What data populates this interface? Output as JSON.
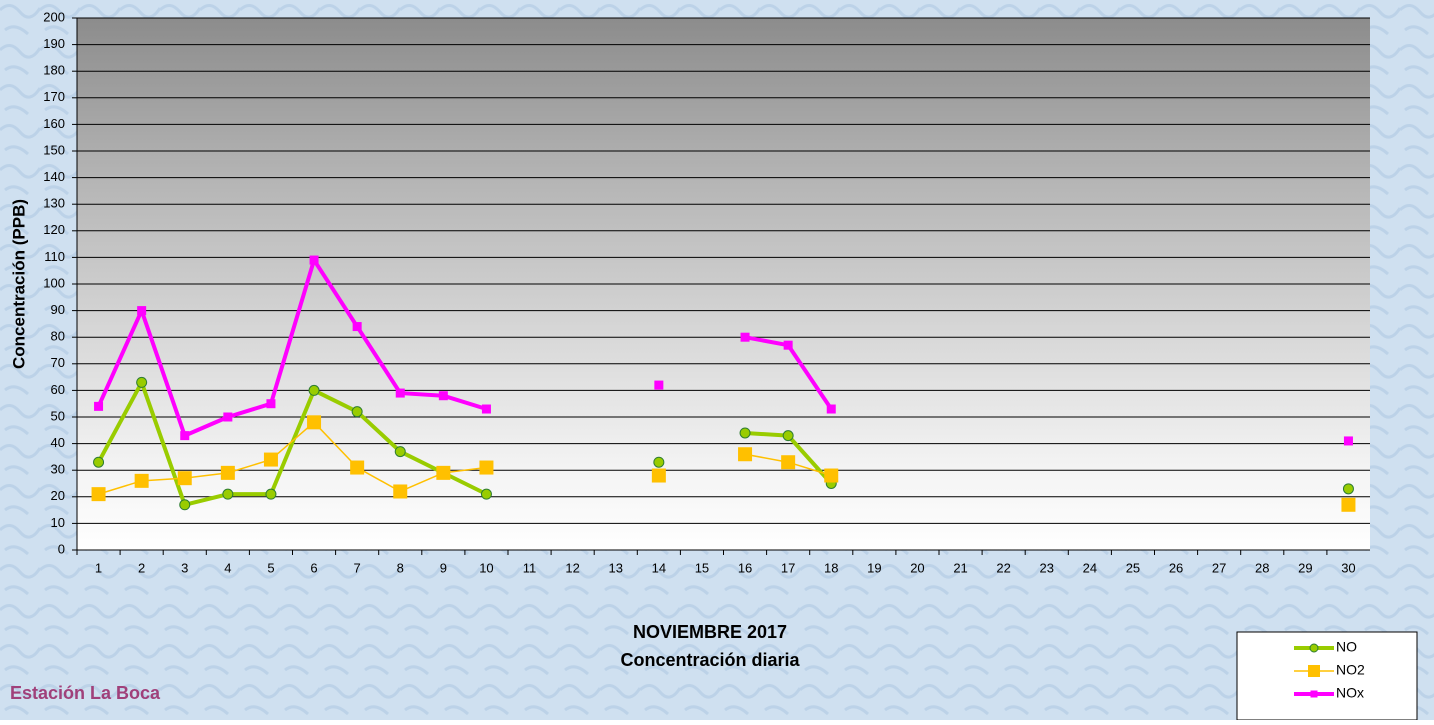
{
  "chart_data": {
    "type": "line",
    "title": "NOVIEMBRE 2017",
    "subtitle": "Concentración diaria",
    "y_label": "Concentración  (PPB)",
    "annotation": "Estación La Boca",
    "categories": [
      "1",
      "2",
      "3",
      "4",
      "5",
      "6",
      "7",
      "8",
      "9",
      "10",
      "11",
      "12",
      "13",
      "14",
      "15",
      "16",
      "17",
      "18",
      "19",
      "20",
      "21",
      "22",
      "23",
      "24",
      "25",
      "26",
      "27",
      "28",
      "29",
      "30"
    ],
    "series": [
      {
        "name": "NO",
        "color": "#99cc00",
        "marker": "circle",
        "values": [
          33,
          63,
          17,
          21,
          21,
          60,
          52,
          37,
          29,
          21,
          null,
          null,
          null,
          33,
          null,
          44,
          43,
          25,
          null,
          null,
          null,
          null,
          null,
          null,
          null,
          null,
          null,
          null,
          null,
          23
        ]
      },
      {
        "name": "NO2",
        "color": "#ffc000",
        "marker": "square",
        "values": [
          21,
          26,
          27,
          29,
          34,
          48,
          31,
          22,
          29,
          31,
          null,
          null,
          null,
          28,
          null,
          36,
          33,
          28,
          null,
          null,
          null,
          null,
          null,
          null,
          null,
          null,
          null,
          null,
          null,
          17
        ]
      },
      {
        "name": "NOx",
        "color": "#ff00ff",
        "marker": "square",
        "values": [
          54,
          90,
          43,
          50,
          55,
          109,
          84,
          59,
          58,
          53,
          null,
          null,
          null,
          62,
          null,
          80,
          77,
          53,
          null,
          null,
          null,
          null,
          null,
          null,
          null,
          null,
          null,
          null,
          null,
          41
        ]
      }
    ],
    "ylim": [
      0,
      200
    ],
    "yticks": [
      0,
      10,
      20,
      30,
      40,
      50,
      60,
      70,
      80,
      90,
      100,
      110,
      120,
      130,
      140,
      150,
      160,
      170,
      180,
      190,
      200
    ],
    "grid": true,
    "legend": "bottom-right"
  }
}
